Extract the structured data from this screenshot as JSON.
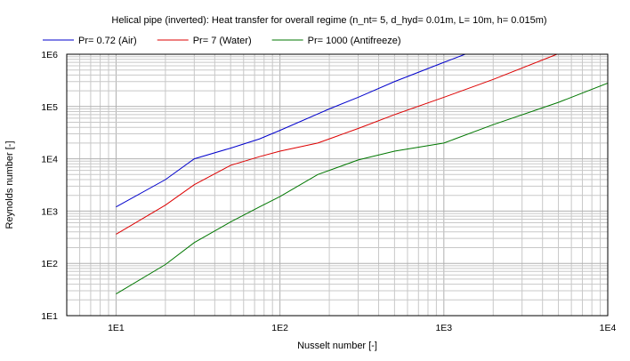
{
  "chart_data": {
    "type": "line",
    "title": "Helical pipe (inverted): Heat transfer for overall regime (n_nt= 5, d_hyd= 0.01m, L= 10m, h= 0.015m)",
    "xlabel": "Nusselt number [-]",
    "ylabel": "Reynolds number [-]",
    "x_scale": "log",
    "y_scale": "log",
    "xlim": [
      5,
      10000
    ],
    "ylim": [
      10,
      1000000
    ],
    "grid": true,
    "legend_position": "top-left",
    "x_ticks": [
      {
        "value": 10,
        "label": "1E1"
      },
      {
        "value": 100,
        "label": "1E2"
      },
      {
        "value": 1000,
        "label": "1E3"
      },
      {
        "value": 10000,
        "label": "1E4"
      }
    ],
    "y_ticks": [
      {
        "value": 10,
        "label": "1E1"
      },
      {
        "value": 100,
        "label": "1E2"
      },
      {
        "value": 1000,
        "label": "1E3"
      },
      {
        "value": 10000,
        "label": "1E4"
      },
      {
        "value": 100000,
        "label": "1E5"
      },
      {
        "value": 1000000,
        "label": "1E6"
      }
    ],
    "series": [
      {
        "name": "Pr= 0.72 (Air)",
        "color": "#0000cc",
        "points": [
          [
            10,
            1200
          ],
          [
            20,
            4000
          ],
          [
            30,
            10000
          ],
          [
            50,
            16000
          ],
          [
            75,
            24000
          ],
          [
            100,
            35000
          ],
          [
            200,
            90000
          ],
          [
            300,
            150000
          ],
          [
            500,
            300000
          ],
          [
            1000,
            700000
          ],
          [
            1350,
            1000000
          ]
        ]
      },
      {
        "name": "Pr= 7 (Water)",
        "color": "#dd0000",
        "points": [
          [
            10,
            360
          ],
          [
            20,
            1300
          ],
          [
            30,
            3200
          ],
          [
            50,
            7500
          ],
          [
            75,
            11000
          ],
          [
            100,
            14000
          ],
          [
            170,
            20000
          ],
          [
            300,
            38000
          ],
          [
            500,
            70000
          ],
          [
            1000,
            150000
          ],
          [
            2000,
            330000
          ],
          [
            4900,
            1000000
          ]
        ]
      },
      {
        "name": "Pr= 1000 (Antifreeze)",
        "color": "#007700",
        "points": [
          [
            10,
            26
          ],
          [
            20,
            95
          ],
          [
            30,
            250
          ],
          [
            50,
            620
          ],
          [
            75,
            1200
          ],
          [
            100,
            1900
          ],
          [
            170,
            5000
          ],
          [
            300,
            9500
          ],
          [
            500,
            14000
          ],
          [
            1000,
            20000
          ],
          [
            2000,
            45000
          ],
          [
            5000,
            120000
          ],
          [
            10000,
            280000
          ]
        ]
      }
    ]
  }
}
